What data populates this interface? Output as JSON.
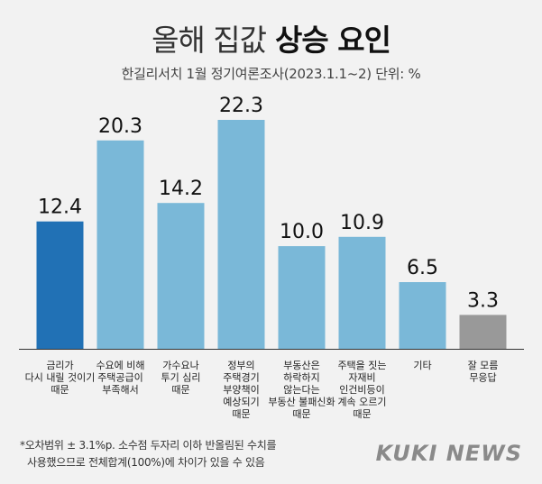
{
  "title_light": "올해 집값",
  "title_bold": "상승 요인",
  "subtitle": "한길리서치 1월 정기여론조사(2023.1.1~2) 단위: %",
  "footnote": {
    "line1": "*오차범위 ± 3.1%p. 소수점 두자리 이하 반올림된 수치를",
    "line2": "사용했으므로 전체합계(100%)에 차이가 있을 수 있음"
  },
  "logo": "KUKI NEWS",
  "colors": {
    "highlight": "#2171b5",
    "default": "#7ab8d8",
    "other": "#999999"
  },
  "chart_data": {
    "type": "bar",
    "categories": [
      [
        "금리가",
        "다시 내릴 것이기",
        "때문"
      ],
      [
        "수요에 비해",
        "주택공급이",
        "부족해서"
      ],
      [
        "가수요나",
        "투기 심리",
        "때문"
      ],
      [
        "정부의",
        "주택경기",
        "부양책이",
        "예상되기",
        "때문"
      ],
      [
        "부동산은",
        "하락하지",
        "않는다는",
        "부동산 불패신화",
        "때문"
      ],
      [
        "주택을 짓는",
        "자재비",
        "인건비등이",
        "계속 오르기",
        "때문"
      ],
      [
        "기타"
      ],
      [
        "잘 모름",
        "무응답"
      ]
    ],
    "values": [
      12.4,
      20.3,
      14.2,
      22.3,
      10.0,
      10.9,
      6.5,
      3.3
    ],
    "value_labels": [
      "12.4",
      "20.3",
      "14.2",
      "22.3",
      "10.0",
      "10.9",
      "6.5",
      "3.3"
    ],
    "bar_colors": [
      "#2171b5",
      "#7ab8d8",
      "#7ab8d8",
      "#7ab8d8",
      "#7ab8d8",
      "#7ab8d8",
      "#7ab8d8",
      "#999999"
    ],
    "ylim": [
      0,
      23
    ],
    "grid": false,
    "legend": "none"
  }
}
